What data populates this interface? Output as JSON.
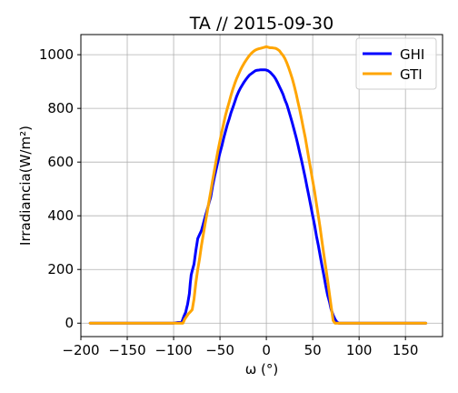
{
  "chart_data": {
    "type": "line",
    "title": "TA // 2015-09-30",
    "xlabel": "ω (°)",
    "ylabel": "Irradiancia(W/m²)",
    "xlim": [
      -200,
      190
    ],
    "ylim": [
      -50,
      1075
    ],
    "grid": true,
    "legend_position": "top-right",
    "x_ticks": [
      -200,
      -150,
      -100,
      -50,
      0,
      50,
      100,
      150
    ],
    "x_tick_labels": [
      "−200",
      "−150",
      "−100",
      "−50",
      "0",
      "50",
      "100",
      "150"
    ],
    "y_ticks": [
      0,
      200,
      400,
      600,
      800,
      1000
    ],
    "y_tick_labels": [
      "0",
      "200",
      "400",
      "600",
      "800",
      "1000"
    ],
    "series": [
      {
        "name": "GHI",
        "color": "#0000ff",
        "x": [
          -190,
          -100,
          -91,
          -89,
          -87,
          -86,
          -85,
          -84,
          -83,
          -82,
          -81,
          -80,
          -78,
          -76,
          -74,
          -72,
          -70,
          -68,
          -66,
          -64,
          -62,
          -60,
          -58,
          -56,
          -54,
          -52,
          -50,
          -48,
          -46,
          -44,
          -42,
          -40,
          -38,
          -36,
          -34,
          -32,
          -30,
          -28,
          -26,
          -24,
          -22,
          -20,
          -18,
          -16,
          -14,
          -12,
          -10,
          -8,
          -6,
          -4,
          -2,
          0,
          2,
          4,
          6,
          8,
          10,
          12,
          14,
          16,
          18,
          20,
          22,
          24,
          26,
          28,
          30,
          32,
          34,
          36,
          38,
          40,
          42,
          44,
          46,
          48,
          50,
          52,
          54,
          56,
          58,
          60,
          62,
          64,
          66,
          68,
          70,
          72,
          74,
          76,
          78,
          80,
          82,
          84,
          86,
          88,
          89,
          90,
          91,
          92,
          95,
          100,
          172
        ],
        "values": [
          0,
          0,
          5,
          25,
          40,
          55,
          70,
          90,
          110,
          150,
          180,
          195,
          220,
          270,
          315,
          330,
          345,
          370,
          395,
          420,
          445,
          470,
          510,
          545,
          575,
          605,
          635,
          660,
          690,
          715,
          740,
          762,
          785,
          805,
          825,
          845,
          862,
          875,
          887,
          898,
          908,
          917,
          925,
          930,
          935,
          940,
          942,
          943,
          944,
          944,
          944,
          943,
          940,
          935,
          928,
          920,
          910,
          897,
          882,
          868,
          852,
          832,
          815,
          793,
          770,
          745,
          720,
          693,
          665,
          635,
          605,
          573,
          540,
          505,
          472,
          435,
          400,
          365,
          325,
          290,
          252,
          215,
          178,
          140,
          105,
          80,
          50,
          30,
          15,
          5,
          0,
          0,
          0,
          0,
          0,
          0,
          0,
          0,
          0,
          0,
          0,
          0,
          0
        ]
      },
      {
        "name": "GTI",
        "color": "#ffa500",
        "x": [
          -190,
          -90,
          -88,
          -86,
          -84,
          -82,
          -80,
          -78,
          -76,
          -74,
          -72,
          -70,
          -68,
          -66,
          -64,
          -62,
          -60,
          -58,
          -56,
          -54,
          -52,
          -50,
          -48,
          -46,
          -44,
          -42,
          -40,
          -38,
          -36,
          -34,
          -32,
          -30,
          -28,
          -26,
          -24,
          -22,
          -20,
          -18,
          -16,
          -14,
          -12,
          -10,
          -8,
          -6,
          -4,
          -2,
          0,
          2,
          4,
          6,
          8,
          10,
          12,
          14,
          16,
          18,
          20,
          22,
          24,
          26,
          28,
          30,
          32,
          34,
          36,
          38,
          40,
          42,
          44,
          46,
          48,
          50,
          52,
          54,
          56,
          58,
          60,
          62,
          64,
          66,
          68,
          70,
          72,
          74,
          76,
          78,
          80,
          82,
          84,
          86,
          88,
          90,
          91,
          92,
          94,
          100,
          172
        ],
        "values": [
          0,
          0,
          15,
          25,
          35,
          42,
          50,
          90,
          150,
          200,
          240,
          290,
          330,
          370,
          410,
          450,
          490,
          530,
          570,
          608,
          645,
          680,
          713,
          745,
          775,
          800,
          825,
          850,
          873,
          893,
          911,
          927,
          942,
          956,
          968,
          979,
          989,
          998,
          1006,
          1012,
          1017,
          1020,
          1022,
          1024,
          1026,
          1028,
          1030,
          1028,
          1026,
          1026,
          1025,
          1024,
          1020,
          1015,
          1006,
          997,
          986,
          970,
          952,
          932,
          910,
          885,
          856,
          825,
          795,
          760,
          725,
          690,
          650,
          610,
          570,
          530,
          490,
          445,
          400,
          355,
          305,
          255,
          210,
          160,
          110,
          60,
          10,
          0,
          0,
          0,
          0,
          0,
          0,
          0,
          0,
          0,
          0,
          0,
          0,
          0,
          0
        ]
      }
    ]
  }
}
